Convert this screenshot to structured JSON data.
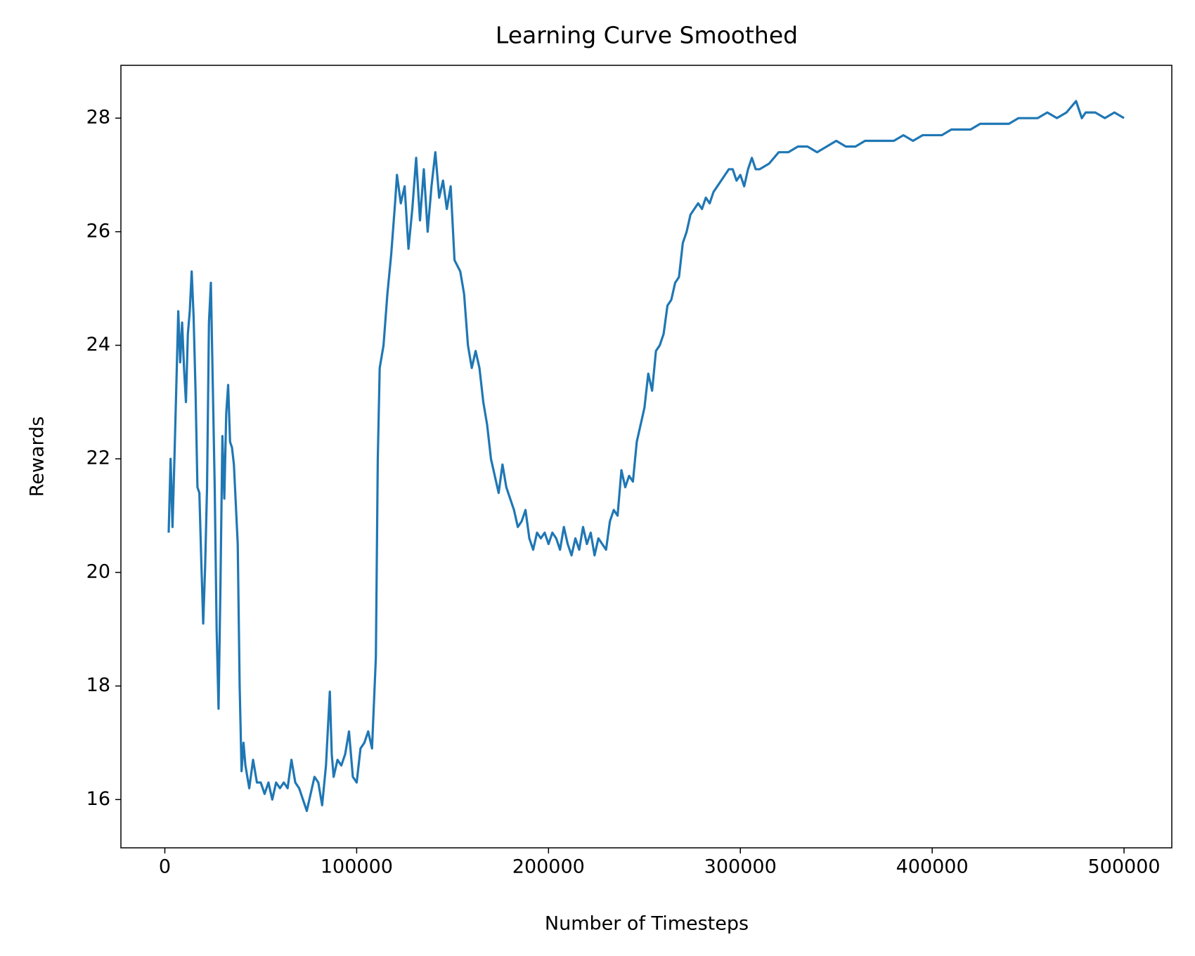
{
  "chart_data": {
    "type": "line",
    "title": "Learning Curve Smoothed",
    "x_label": "Number of Timesteps",
    "y_label": "Rewards",
    "color": "#1f77b4",
    "x": [
      2000,
      3000,
      4000,
      5000,
      6000,
      7000,
      8000,
      9000,
      10000,
      11000,
      12000,
      13000,
      14000,
      15000,
      16000,
      17000,
      18000,
      19000,
      20000,
      21000,
      22000,
      23000,
      24000,
      25000,
      26000,
      27000,
      28000,
      29000,
      30000,
      31000,
      32000,
      33000,
      34000,
      35000,
      36000,
      37000,
      38000,
      39000,
      40000,
      41000,
      42000,
      44000,
      46000,
      48000,
      50000,
      52000,
      54000,
      56000,
      58000,
      60000,
      62000,
      64000,
      66000,
      68000,
      70000,
      72000,
      74000,
      76000,
      78000,
      80000,
      82000,
      84000,
      86000,
      87000,
      88000,
      90000,
      92000,
      94000,
      96000,
      98000,
      100000,
      102000,
      104000,
      106000,
      108000,
      110000,
      111000,
      112000,
      114000,
      116000,
      118000,
      120000,
      121000,
      123000,
      125000,
      127000,
      129000,
      131000,
      133000,
      135000,
      137000,
      139000,
      141000,
      143000,
      145000,
      147000,
      149000,
      151000,
      154000,
      156000,
      158000,
      160000,
      162000,
      164000,
      166000,
      168000,
      170000,
      172000,
      174000,
      176000,
      178000,
      180000,
      182000,
      184000,
      186000,
      188000,
      190000,
      192000,
      194000,
      196000,
      198000,
      200000,
      202000,
      204000,
      206000,
      208000,
      210000,
      212000,
      214000,
      216000,
      218000,
      220000,
      222000,
      224000,
      226000,
      228000,
      230000,
      232000,
      234000,
      236000,
      238000,
      240000,
      242000,
      244000,
      246000,
      248000,
      250000,
      252000,
      254000,
      256000,
      258000,
      260000,
      262000,
      264000,
      266000,
      268000,
      270000,
      272000,
      274000,
      276000,
      278000,
      280000,
      282000,
      284000,
      286000,
      288000,
      290000,
      292000,
      294000,
      296000,
      298000,
      300000,
      302000,
      304000,
      306000,
      308000,
      310000,
      315000,
      320000,
      325000,
      330000,
      335000,
      340000,
      345000,
      350000,
      355000,
      360000,
      365000,
      370000,
      375000,
      380000,
      385000,
      390000,
      395000,
      400000,
      405000,
      410000,
      415000,
      420000,
      425000,
      430000,
      435000,
      440000,
      445000,
      450000,
      455000,
      460000,
      465000,
      470000,
      475000,
      478000,
      480000,
      485000,
      490000,
      495000,
      500000
    ],
    "values": [
      20.7,
      22.0,
      20.8,
      22.0,
      23.3,
      24.6,
      23.7,
      24.4,
      23.6,
      23.0,
      24.2,
      24.6,
      25.3,
      24.5,
      23.2,
      21.5,
      21.4,
      20.2,
      19.1,
      20.1,
      21.5,
      24.4,
      25.1,
      23.3,
      21.5,
      19.0,
      17.6,
      19.8,
      22.4,
      21.3,
      22.8,
      23.3,
      22.3,
      22.2,
      21.9,
      21.2,
      20.5,
      18.0,
      16.5,
      17.0,
      16.6,
      16.2,
      16.7,
      16.3,
      16.3,
      16.1,
      16.3,
      16.0,
      16.3,
      16.2,
      16.3,
      16.2,
      16.7,
      16.3,
      16.2,
      16.0,
      15.8,
      16.1,
      16.4,
      16.3,
      15.9,
      16.6,
      17.9,
      16.8,
      16.4,
      16.7,
      16.6,
      16.8,
      17.2,
      16.4,
      16.3,
      16.9,
      17.0,
      17.2,
      16.9,
      18.5,
      22.0,
      23.6,
      24.0,
      24.9,
      25.6,
      26.5,
      27.0,
      26.5,
      26.8,
      25.7,
      26.4,
      27.3,
      26.2,
      27.1,
      26.0,
      26.8,
      27.4,
      26.6,
      26.9,
      26.4,
      26.8,
      25.5,
      25.3,
      24.9,
      24.0,
      23.6,
      23.9,
      23.6,
      23.0,
      22.6,
      22.0,
      21.7,
      21.4,
      21.9,
      21.5,
      21.3,
      21.1,
      20.8,
      20.9,
      21.1,
      20.6,
      20.4,
      20.7,
      20.6,
      20.7,
      20.5,
      20.7,
      20.6,
      20.4,
      20.8,
      20.5,
      20.3,
      20.6,
      20.4,
      20.8,
      20.5,
      20.7,
      20.3,
      20.6,
      20.5,
      20.4,
      20.9,
      21.1,
      21.0,
      21.8,
      21.5,
      21.7,
      21.6,
      22.3,
      22.6,
      22.9,
      23.5,
      23.2,
      23.9,
      24.0,
      24.2,
      24.7,
      24.8,
      25.1,
      25.2,
      25.8,
      26.0,
      26.3,
      26.4,
      26.5,
      26.4,
      26.6,
      26.5,
      26.7,
      26.8,
      26.9,
      27.0,
      27.1,
      27.1,
      26.9,
      27.0,
      26.8,
      27.1,
      27.3,
      27.1,
      27.1,
      27.2,
      27.4,
      27.4,
      27.5,
      27.5,
      27.4,
      27.5,
      27.6,
      27.5,
      27.5,
      27.6,
      27.6,
      27.6,
      27.6,
      27.7,
      27.6,
      27.7,
      27.7,
      27.7,
      27.8,
      27.8,
      27.8,
      27.9,
      27.9,
      27.9,
      27.9,
      28.0,
      28.0,
      28.0,
      28.1,
      28.0,
      28.1,
      28.3,
      28.0,
      28.1,
      28.1,
      28.0,
      28.1,
      28.0
    ],
    "xlim": [
      -22900,
      524900
    ],
    "ylim": [
      15.15,
      28.93
    ],
    "xticks": [
      0,
      100000,
      200000,
      300000,
      400000,
      500000
    ],
    "yticks": [
      16,
      18,
      20,
      22,
      24,
      26,
      28
    ]
  }
}
